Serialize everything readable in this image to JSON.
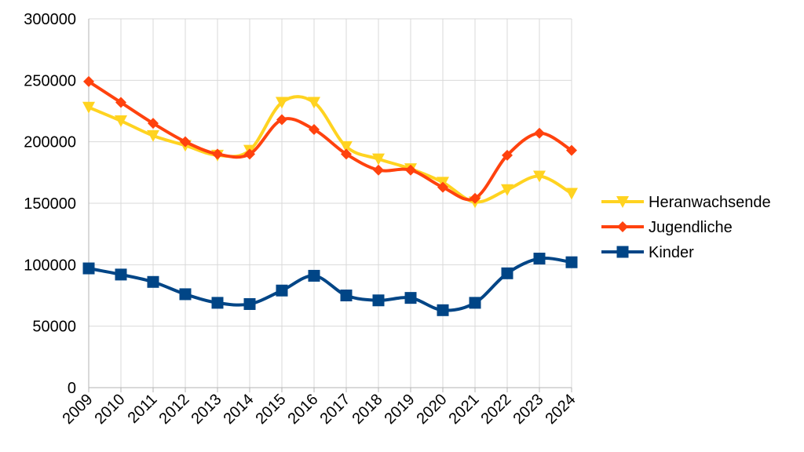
{
  "chart_data": {
    "type": "line",
    "title": "",
    "xlabel": "",
    "ylabel": "",
    "categories": [
      "2009",
      "2010",
      "2011",
      "2012",
      "2013",
      "2014",
      "2015",
      "2016",
      "2017",
      "2018",
      "2019",
      "2020",
      "2021",
      "2022",
      "2023",
      "2024"
    ],
    "ylim": [
      0,
      300000
    ],
    "yticks": [
      0,
      50000,
      100000,
      150000,
      200000,
      250000,
      300000
    ],
    "grid": true,
    "legend_position": "right",
    "series": [
      {
        "name": "Heranwachsende",
        "color": "#ffd320",
        "marker": "triangle-down",
        "values": [
          228000,
          217000,
          205000,
          197000,
          189000,
          193000,
          232000,
          232000,
          196000,
          186000,
          178000,
          167000,
          151000,
          161000,
          172000,
          158000
        ]
      },
      {
        "name": "Jugendliche",
        "color": "#ff420e",
        "marker": "diamond",
        "values": [
          249000,
          232000,
          215000,
          200000,
          190000,
          190000,
          218000,
          210000,
          190000,
          177000,
          177000,
          163000,
          154000,
          189000,
          207000,
          193000
        ]
      },
      {
        "name": "Kinder",
        "color": "#004586",
        "marker": "square",
        "values": [
          97000,
          92000,
          86000,
          76000,
          69000,
          68000,
          79000,
          91000,
          75000,
          71000,
          73000,
          63000,
          69000,
          93000,
          105000,
          102000
        ]
      }
    ]
  }
}
